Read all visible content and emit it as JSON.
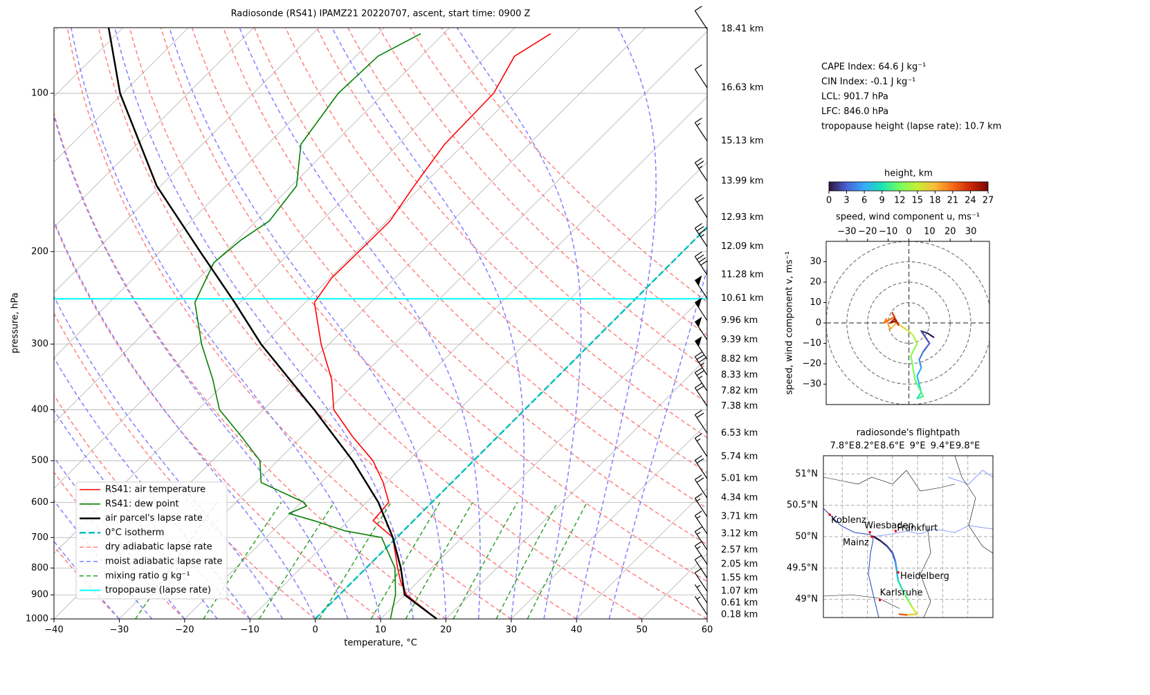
{
  "chart_data": [
    {
      "type": "skewt",
      "title": "Radiosonde (RS41) IPAMZ21 20220707, ascent, start time: 0900 Z",
      "x_label": "temperature, °C",
      "y_label": "pressure, hPa",
      "xlim": [
        -40,
        60
      ],
      "xticks": [
        {
          "value": -40,
          "label": "−40"
        },
        {
          "value": -30,
          "label": "−30"
        },
        {
          "value": -20,
          "label": "−20"
        },
        {
          "value": -10,
          "label": "−10"
        },
        0,
        10,
        20,
        30,
        40,
        50,
        60
      ],
      "ylim": [
        1000,
        75
      ],
      "log_y": true,
      "yticks": [
        100,
        200,
        300,
        400,
        500,
        600,
        700,
        800,
        900,
        1000
      ],
      "grid": true,
      "legend": "lower left",
      "series": [
        {
          "name": "RS41: air temperature",
          "color": "#ff0000",
          "pressure": [
            1000,
            900,
            850,
            800,
            700,
            650,
            600,
            550,
            500,
            450,
            400,
            350,
            300,
            250,
            225,
            200,
            175,
            150,
            125,
            100,
            85,
            77
          ],
          "values": [
            18.6,
            10.3,
            7.4,
            4.8,
            -0.6,
            -6.2,
            -6.6,
            -10.5,
            -15.4,
            -22.2,
            -29.2,
            -34.2,
            -41.2,
            -48.6,
            -49.7,
            -49.6,
            -49.5,
            -51.2,
            -52.9,
            -53.2,
            -55.7,
            -53.6
          ]
        },
        {
          "name": "RS41: dew point",
          "color": "#008000",
          "pressure": [
            1000,
            900,
            800,
            700,
            680,
            650,
            630,
            610,
            600,
            550,
            500,
            450,
            400,
            350,
            300,
            250,
            210,
            190,
            175,
            150,
            125,
            100,
            85,
            77
          ],
          "values": [
            11.5,
            8.6,
            4.4,
            -2.3,
            -8.9,
            -15.3,
            -20.2,
            -18.6,
            -19.6,
            -29.2,
            -32.7,
            -39.2,
            -46.7,
            -52.4,
            -59.5,
            -66.9,
            -70.1,
            -69.4,
            -68.0,
            -69.2,
            -74.9,
            -77.0,
            -76.6,
            -73.5
          ]
        },
        {
          "name": "air parcel's lapse rate",
          "color": "#000000",
          "pressure": [
            1000,
            900,
            800,
            700,
            600,
            500,
            400,
            300,
            250,
            200,
            150,
            100,
            75
          ],
          "values": [
            18.6,
            10.0,
            5.3,
            -0.6,
            -8.2,
            -18.5,
            -32.2,
            -50.4,
            -60.8,
            -73.9,
            -90.6,
            -110.4,
            -122.2
          ]
        }
      ],
      "isotherm": {
        "name": "0°C isotherm",
        "color": "#00bfbf",
        "value": 0
      },
      "dry_adiabats": {
        "name": "dry adiabatic lapse rate",
        "color": "#ff7f7f",
        "values": [
          -30,
          -20,
          -10,
          0,
          10,
          20,
          30,
          40,
          50,
          60,
          70,
          80,
          90,
          100,
          110,
          120,
          130,
          140,
          150
        ]
      },
      "moist_adiabats": {
        "name": "moist adiabatic lapse rate",
        "color": "#7f7fff",
        "values": [
          -30,
          -25,
          -20,
          -15,
          -10,
          -5,
          0,
          5,
          10,
          15,
          20,
          25,
          30,
          35,
          40,
          45
        ]
      },
      "mixing_ratio": {
        "name": "mixing ratio g kg⁻¹",
        "color": "#2ca02c",
        "values": [
          0.4,
          1,
          2,
          4,
          7,
          10,
          16,
          24,
          32
        ],
        "top": 600
      },
      "tropopause": {
        "name": "tropopause (lapse rate)",
        "color": "#00ffff",
        "value": 246
      },
      "heights": [
        {
          "value": 18.41,
          "label": "18.41 km"
        },
        {
          "value": 16.63,
          "label": "16.63 km"
        },
        {
          "value": 15.13,
          "label": "15.13 km"
        },
        {
          "value": 13.99,
          "label": "13.99 km"
        },
        {
          "value": 12.93,
          "label": "12.93 km"
        },
        {
          "value": 12.09,
          "label": "12.09 km"
        },
        {
          "value": 11.28,
          "label": "11.28 km"
        },
        {
          "value": 10.61,
          "label": "10.61 km"
        },
        {
          "value": 9.96,
          "label": "9.96 km"
        },
        {
          "value": 9.39,
          "label": "9.39 km"
        },
        {
          "value": 8.82,
          "label": "8.82 km"
        },
        {
          "value": 8.33,
          "label": "8.33 km"
        },
        {
          "value": 7.82,
          "label": "7.82 km"
        },
        {
          "value": 7.38,
          "label": "7.38 km"
        },
        {
          "value": 6.53,
          "label": "6.53 km"
        },
        {
          "value": 5.74,
          "label": "5.74 km"
        },
        {
          "value": 5.01,
          "label": "5.01 km"
        },
        {
          "value": 4.34,
          "label": "4.34 km"
        },
        {
          "value": 3.71,
          "label": "3.71 km"
        },
        {
          "value": 3.12,
          "label": "3.12 km"
        },
        {
          "value": 2.57,
          "label": "2.57 km"
        },
        {
          "value": 2.05,
          "label": "2.05 km"
        },
        {
          "value": 1.55,
          "label": "1.55 km"
        },
        {
          "value": 1.07,
          "label": "1.07 km"
        },
        {
          "value": 0.61,
          "label": "0.61 km"
        },
        {
          "value": 0.18,
          "label": "0.18 km"
        }
      ],
      "height_pressure": [
        75.5,
        97.6,
        123.3,
        146.9,
        172.4,
        195.7,
        221.6,
        245.6,
        270.6,
        294.5,
        320.6,
        343.7,
        368.5,
        393.8,
        443.2,
        491.2,
        541.0,
        588.8,
        639.0,
        689.3,
        739.3,
        787.4,
        836.3,
        885.9,
        932.8,
        981.9
      ],
      "wind_speed": [
        10,
        10,
        15,
        25,
        20,
        35,
        40,
        50,
        50,
        50,
        50,
        35,
        25,
        20,
        20,
        15,
        20,
        20,
        15,
        15,
        15,
        15,
        10,
        10,
        5,
        5
      ],
      "annotations": [
        "CAPE Index: 64.6 J kg⁻¹",
        "CIN Index: -0.1 J kg⁻¹",
        "LCL: 901.7 hPa",
        "LFC: 846.0 hPa",
        "tropopause height (lapse rate): 10.7 km"
      ]
    },
    {
      "type": "hodograph",
      "title": "height, km",
      "x_label": "speed, wind component u, ms⁻¹",
      "y_label": "speed, wind component v, ms⁻¹",
      "xlim": [
        -40,
        39
      ],
      "ylim": [
        -40,
        40
      ],
      "xticks": [
        {
          "value": -30,
          "label": "−30"
        },
        {
          "value": -20,
          "label": "−20"
        },
        {
          "value": -10,
          "label": "−10"
        },
        0,
        10,
        20,
        30
      ],
      "yticks": [
        {
          "value": -30,
          "label": "−30"
        },
        {
          "value": -20,
          "label": "−20"
        },
        {
          "value": -10,
          "label": "−10"
        },
        0,
        10,
        20,
        30
      ],
      "colorbar_lim": [
        0,
        27
      ],
      "colorbar_ticks": [
        0,
        3,
        6,
        9,
        12,
        15,
        18,
        21,
        24,
        27
      ],
      "colormap": [
        "#30123b",
        "#4662d7",
        "#36aaf9",
        "#1ae4b6",
        "#72fe5e",
        "#c8ef34",
        "#faba39",
        "#f66b19",
        "#ca2a04",
        "#7a0403"
      ],
      "height": [
        0,
        1,
        2,
        3,
        4,
        5,
        6,
        7,
        8,
        9,
        10,
        11,
        12,
        13,
        14,
        15,
        16,
        17,
        18,
        19,
        20,
        21,
        22,
        23,
        24,
        25,
        26,
        27
      ],
      "u": [
        12,
        9,
        6,
        10,
        7,
        5,
        6,
        4,
        5,
        6,
        4,
        7,
        3,
        1,
        4,
        2,
        0,
        -3,
        -6,
        -9,
        -11,
        -12,
        -7,
        -8,
        -5,
        -7,
        -9,
        -6
      ],
      "v": [
        -7,
        -5,
        -4,
        -10,
        -14,
        -18,
        -22,
        -26,
        -30,
        -34,
        -37,
        -36,
        -28,
        -16,
        -10,
        -6,
        -4,
        -2,
        0,
        -3,
        2,
        0,
        3,
        5,
        -1,
        2,
        0,
        1
      ]
    },
    {
      "type": "map",
      "title": "radiosonde's flightpath",
      "xlim": [
        7.5,
        10.2
      ],
      "ylim": [
        48.71,
        51.29
      ],
      "xticks": [
        {
          "value": 7.8,
          "label": "7.8°E"
        },
        {
          "value": 8.2,
          "label": "8.2°E"
        },
        {
          "value": 8.6,
          "label": "8.6°E"
        },
        {
          "value": 9.0,
          "label": "9°E"
        },
        {
          "value": 9.4,
          "label": "9.4°E"
        },
        {
          "value": 9.8,
          "label": "9.8°E"
        }
      ],
      "yticks": [
        {
          "value": 51,
          "label": "51°N"
        },
        {
          "value": 50.5,
          "label": "50.5°N"
        },
        {
          "value": 50,
          "label": "50°N"
        },
        {
          "value": 49.5,
          "label": "49.5°N"
        },
        {
          "value": 49,
          "label": "49°N"
        }
      ],
      "lon": [
        8.293,
        8.403,
        8.513,
        8.601,
        8.645,
        8.667,
        8.689,
        8.767,
        8.844,
        8.91,
        8.987,
        8.822,
        8.711
      ],
      "lat": [
        50.004,
        49.938,
        49.85,
        49.74,
        49.609,
        49.466,
        49.301,
        49.136,
        48.993,
        48.883,
        48.763,
        48.752,
        48.763
      ],
      "height": [
        0,
        1,
        2,
        3,
        5,
        7,
        9,
        11,
        13,
        15,
        17,
        22,
        26
      ],
      "cities": [
        {
          "name": "Koblenz",
          "lon": 7.6,
          "lat": 50.35
        },
        {
          "name": "Wiesbaden",
          "lon": 8.24,
          "lat": 50.07
        },
        {
          "name": "Frankfurt",
          "lon": 8.65,
          "lat": 50.09
        },
        {
          "name": "Mainz",
          "lon": 8.27,
          "lat": 50.0
        },
        {
          "name": "Heidelberg",
          "lon": 8.69,
          "lat": 49.43
        },
        {
          "name": "Karlsruhe",
          "lon": 8.4,
          "lat": 48.99
        }
      ]
    }
  ]
}
